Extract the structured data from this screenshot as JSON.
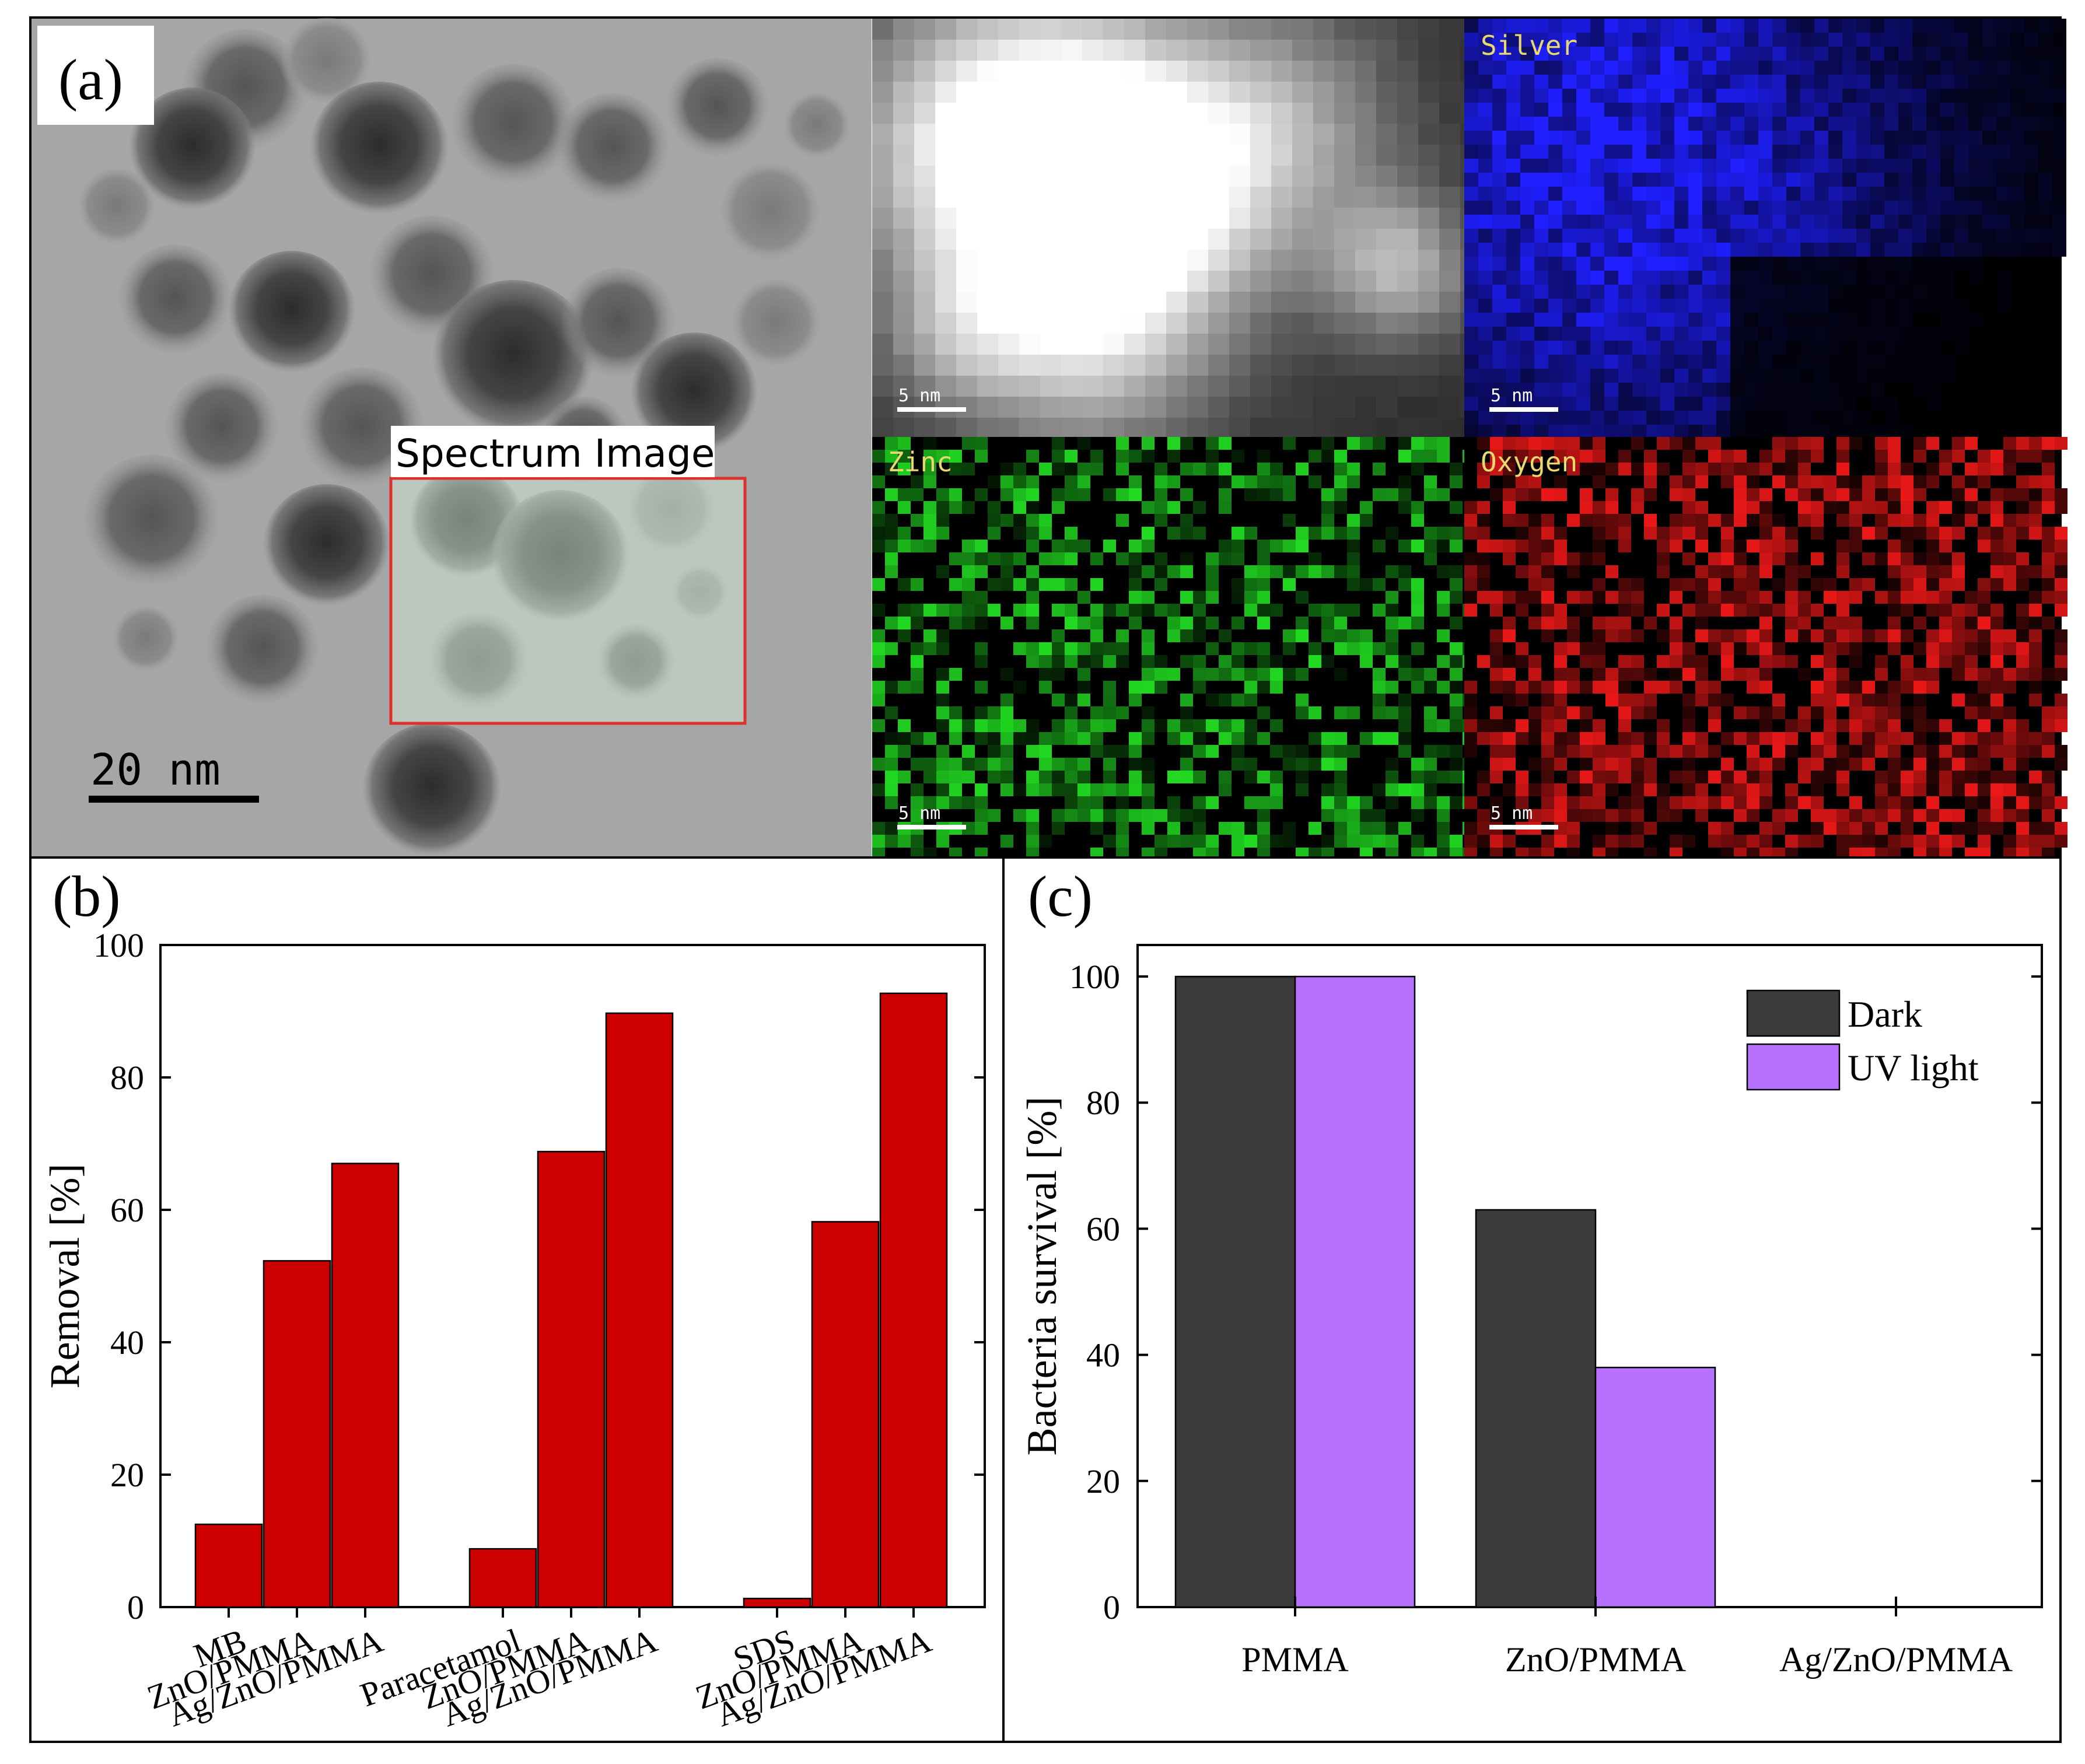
{
  "panel_a": {
    "label": "(a)",
    "spectrum_image_label": "Spectrum Image",
    "scale_bar_label": "20 nm",
    "eds_maps": [
      {
        "name": "",
        "color": "#d8d8d8",
        "scale_label": "5 nm"
      },
      {
        "name": "Silver",
        "color": "#1a1aff",
        "scale_label": "5 nm"
      },
      {
        "name": "Zinc",
        "color": "#22dd22",
        "scale_label": "5 nm"
      },
      {
        "name": "Oxygen",
        "color": "#ff2020",
        "scale_label": "5 nm"
      }
    ],
    "box_color": "#e0302a"
  },
  "chart_data": [
    {
      "panel": "(b)",
      "type": "bar",
      "categories": [
        "MB",
        "ZnO/PMMA",
        "Ag/ZnO/PMMA",
        "Paracetamol",
        "ZnO/PMMA",
        "Ag/ZnO/PMMA",
        "SDS",
        "ZnO/PMMA",
        "Ag/ZnO/PMMA"
      ],
      "groups": [
        [
          0,
          1,
          2
        ],
        [
          3,
          4,
          5
        ],
        [
          6,
          7,
          8
        ]
      ],
      "values": [
        12.5,
        52.3,
        67.0,
        8.8,
        68.8,
        89.7,
        1.3,
        58.2,
        92.7
      ],
      "ylabel": "Removal [%]",
      "ylim": [
        0,
        100
      ],
      "yticks": [
        0,
        20,
        40,
        60,
        80,
        100
      ],
      "bar_color": "#cc0000",
      "grid": false
    },
    {
      "panel": "(c)",
      "type": "bar",
      "categories": [
        "PMMA",
        "ZnO/PMMA",
        "Ag/ZnO/PMMA"
      ],
      "series": [
        {
          "name": "Dark",
          "values": [
            100,
            63,
            0
          ],
          "color": "#3b3b3b"
        },
        {
          "name": "UV light",
          "values": [
            100,
            38,
            0
          ],
          "color": "#b870ff"
        }
      ],
      "ylabel": "Bacteria survival [%]",
      "ylim": [
        0,
        105
      ],
      "yticks": [
        0,
        20,
        40,
        60,
        80,
        100
      ],
      "legend": "top-right",
      "grid": false
    }
  ]
}
